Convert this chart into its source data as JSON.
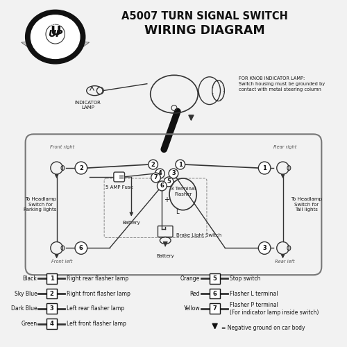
{
  "title1": "A5007 TURN SIGNAL SWITCH",
  "title2": "WIRING DIAGRAM",
  "page_bg": "#f2f2f2",
  "legend_left": [
    {
      "num": "1",
      "color_name": "Black",
      "color": "#222222",
      "label": "Right rear flasher lamp"
    },
    {
      "num": "2",
      "color_name": "Sky Blue",
      "color": "#888888",
      "label": "Right front flasher lamp"
    },
    {
      "num": "3",
      "color_name": "Dark Blue",
      "color": "#444444",
      "label": "Left rear flasher lamp"
    },
    {
      "num": "4",
      "color_name": "Green",
      "color": "#555555",
      "label": "Left front flasher lamp"
    }
  ],
  "legend_right": [
    {
      "num": "5",
      "color_name": "Orange",
      "color": "#888888",
      "label": "Stop switch"
    },
    {
      "num": "6",
      "color_name": "Red",
      "color": "#666666",
      "label": "Flasher L terminal"
    },
    {
      "num": "7",
      "color_name": "Yellow",
      "color": "#999999",
      "label": "Flasher P terminal\n(For indicator lamp inside switch)"
    }
  ],
  "knob_note": "FOR KNOB INDICATOR LAMP:\nSwitch housing must be grounded by\ncontact with metal steering column",
  "front_right": "Front right",
  "rear_right": "Rear right",
  "front_left": "Front left",
  "rear_left": "Rear left",
  "headlamp_left": "To Headlamp\nSwitch for\nParking lights",
  "headlamp_right": "To Headlamp\nSwitch for\nTail lights",
  "fuse_label": "5 AMP Fuse",
  "flasher_label": "3 Terminal\nFlasher",
  "battery1": "Battery",
  "battery2": "Battery",
  "brake_label": "Brake Light Switch",
  "indicator_label": "INDICATOR\nLAMP",
  "ground_label": "= Negative ground on car body"
}
